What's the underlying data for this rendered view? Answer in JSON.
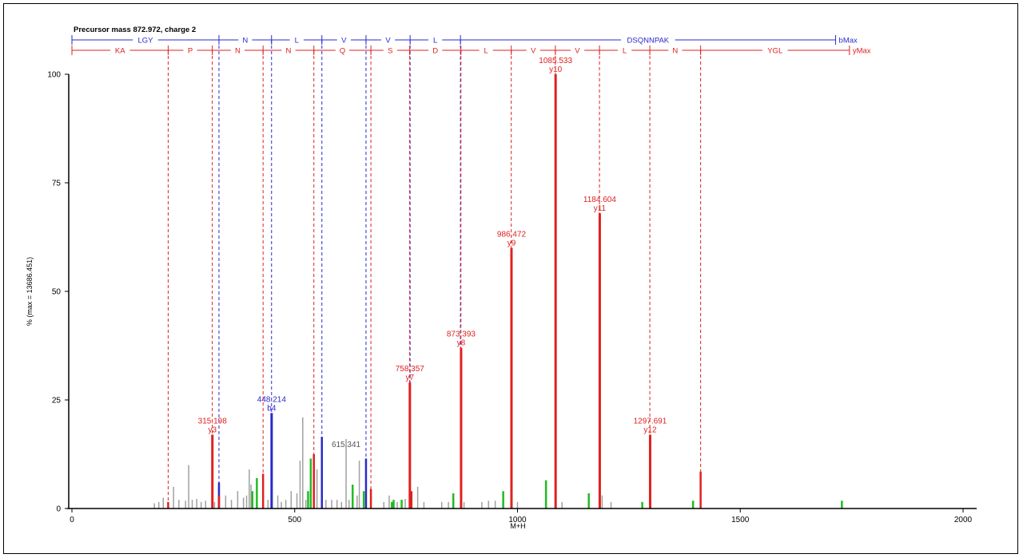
{
  "chart_data": {
    "type": "bar",
    "title": "Precursor mass 872.972, charge 2",
    "xlabel": "M+H",
    "ylabel": "% (max = 13686.451)",
    "xlim": [
      0,
      2000
    ],
    "ylim": [
      0,
      100
    ],
    "x_ticks": [
      0,
      500,
      1000,
      1500,
      2000
    ],
    "y_ticks": [
      0,
      25,
      50,
      75,
      100
    ],
    "colors": {
      "b_ion": "#2a2acc",
      "y_ion": "#e02020",
      "other_ion": "#22bb22",
      "unassigned": "#a0a0a0",
      "axis": "#000000"
    },
    "b_ladder": {
      "end_label": "bMax",
      "segments": [
        "LGY",
        "N",
        "L",
        "V",
        "V",
        "L",
        "DSQNNPAK"
      ],
      "boundaries": [
        0,
        330,
        448,
        561,
        660,
        759,
        872,
        1714
      ]
    },
    "y_ladder": {
      "end_label": "yMax",
      "segments": [
        "KA",
        "P",
        "N",
        "N",
        "Q",
        "S",
        "D",
        "L",
        "V",
        "V",
        "L",
        "N",
        "YGL"
      ],
      "boundaries": [
        0,
        216,
        315,
        429,
        543,
        671,
        758,
        873,
        986,
        1085,
        1184,
        1297,
        1411,
        1745
      ]
    },
    "annotated_peaks": [
      {
        "label": "315.198",
        "ion": "y3",
        "type": "y",
        "x": 315.2,
        "y": 17
      },
      {
        "label": "448.214",
        "ion": "b4",
        "type": "b",
        "x": 448.2,
        "y": 22
      },
      {
        "label": "615.341",
        "ion": "",
        "type": "unassigned",
        "x": 615.3,
        "y": 16
      },
      {
        "label": "758.357",
        "ion": "y7",
        "type": "y",
        "x": 758.4,
        "y": 29
      },
      {
        "label": "873.393",
        "ion": "y8",
        "type": "y",
        "x": 873.4,
        "y": 37
      },
      {
        "label": "986.472",
        "ion": "y9",
        "type": "y",
        "x": 986.5,
        "y": 60
      },
      {
        "label": "1085.533",
        "ion": "y10",
        "type": "y",
        "x": 1085.5,
        "y": 100
      },
      {
        "label": "1184.604",
        "ion": "y11",
        "type": "y",
        "x": 1184.6,
        "y": 68
      },
      {
        "label": "1297.691",
        "ion": "y12",
        "type": "y",
        "x": 1297.7,
        "y": 17
      }
    ],
    "peaks": {
      "y": [
        [
          216,
          1.5
        ],
        [
          330,
          3
        ],
        [
          429,
          8
        ],
        [
          543,
          12.5
        ],
        [
          671,
          4.5
        ],
        [
          1411,
          8.5
        ],
        [
          762,
          4
        ]
      ],
      "b": [
        [
          330,
          6
        ],
        [
          561,
          16.5
        ],
        [
          660,
          11.5
        ]
      ],
      "other": [
        [
          405,
          4
        ],
        [
          415,
          7
        ],
        [
          530,
          4
        ],
        [
          536,
          11.5
        ],
        [
          630,
          5.5
        ],
        [
          655,
          4
        ],
        [
          718,
          1.5
        ],
        [
          722,
          2
        ],
        [
          740,
          2
        ],
        [
          856,
          3.5
        ],
        [
          968,
          4
        ],
        [
          1064,
          6.5
        ],
        [
          1160,
          3.5
        ],
        [
          1280,
          1.5
        ],
        [
          1394,
          1.8
        ],
        [
          1728,
          1.8
        ]
      ],
      "unassigned": [
        [
          185,
          1.2
        ],
        [
          195,
          1.5
        ],
        [
          205,
          2.5
        ],
        [
          228,
          5
        ],
        [
          240,
          2
        ],
        [
          255,
          1.8
        ],
        [
          262,
          10
        ],
        [
          270,
          2
        ],
        [
          280,
          2.2
        ],
        [
          290,
          1.5
        ],
        [
          300,
          1.8
        ],
        [
          320,
          1.5
        ],
        [
          345,
          3
        ],
        [
          358,
          2
        ],
        [
          372,
          4
        ],
        [
          385,
          2.5
        ],
        [
          392,
          3
        ],
        [
          398,
          9
        ],
        [
          402,
          5.5
        ],
        [
          440,
          2
        ],
        [
          462,
          3
        ],
        [
          470,
          1.5
        ],
        [
          480,
          2
        ],
        [
          492,
          4
        ],
        [
          505,
          3.5
        ],
        [
          512,
          11
        ],
        [
          518,
          21
        ],
        [
          525,
          2
        ],
        [
          550,
          9
        ],
        [
          570,
          2
        ],
        [
          583,
          2
        ],
        [
          595,
          2
        ],
        [
          605,
          1.5
        ],
        [
          622,
          2
        ],
        [
          640,
          3
        ],
        [
          645,
          11
        ],
        [
          700,
          1.5
        ],
        [
          712,
          3
        ],
        [
          730,
          1.5
        ],
        [
          748,
          2.2
        ],
        [
          776,
          5
        ],
        [
          790,
          1.5
        ],
        [
          830,
          1.5
        ],
        [
          845,
          1.5
        ],
        [
          880,
          1.5
        ],
        [
          920,
          1.5
        ],
        [
          935,
          1.8
        ],
        [
          950,
          1.8
        ],
        [
          1000,
          1.5
        ],
        [
          1100,
          1.5
        ],
        [
          1190,
          3
        ],
        [
          1210,
          1.5
        ]
      ]
    }
  }
}
